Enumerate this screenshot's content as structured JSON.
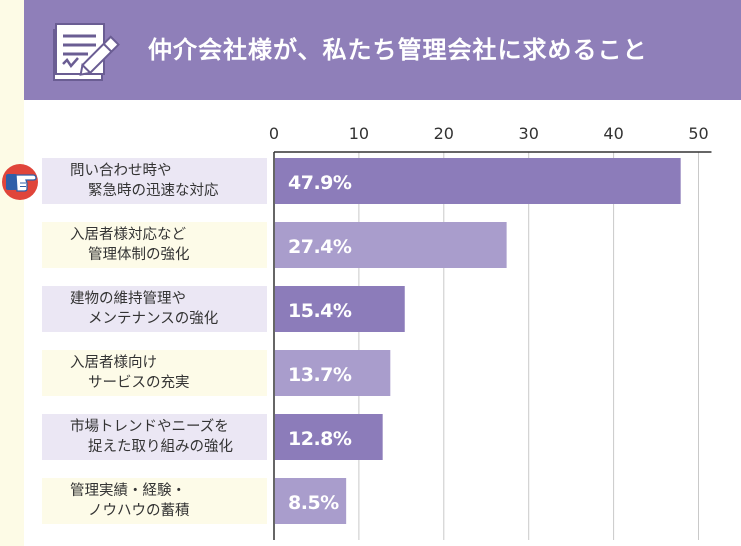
{
  "header": {
    "title": "仲介会社様が、私たち管理会社に求めること"
  },
  "colors": {
    "header_bg": "#8f7fb9",
    "bar_dark": "#8c7cba",
    "bar_light": "#a99dcc",
    "label_bg_odd": "#ebe7f4",
    "label_bg_even": "#fdfbe8",
    "text": "#333333"
  },
  "icons": {
    "header_icon": "document-pen-icon",
    "row_pointer": "pointing-hand-icon"
  },
  "chart_data": {
    "type": "bar",
    "orientation": "horizontal",
    "categories": [
      [
        "問い合わせ時や",
        "緊急時の迅速な対応"
      ],
      [
        "入居者様対応など",
        "管理体制の強化"
      ],
      [
        "建物の維持管理や",
        "メンテナンスの強化"
      ],
      [
        "入居者様向け",
        "サービスの充実"
      ],
      [
        "市場トレンドやニーズを",
        "捉えた取り組みの強化"
      ],
      [
        "管理実績・経験・",
        "ノウハウの蓄積"
      ]
    ],
    "values": [
      47.9,
      27.4,
      15.4,
      13.7,
      12.8,
      8.5
    ],
    "value_labels": [
      "47.9%",
      "27.4%",
      "15.4%",
      "13.7%",
      "12.8%",
      "8.5%"
    ],
    "xticks": [
      "0",
      "10",
      "20",
      "30",
      "40",
      "50"
    ],
    "xlim": [
      0,
      52
    ],
    "grid": true,
    "title": "",
    "xlabel": "",
    "ylabel": ""
  }
}
